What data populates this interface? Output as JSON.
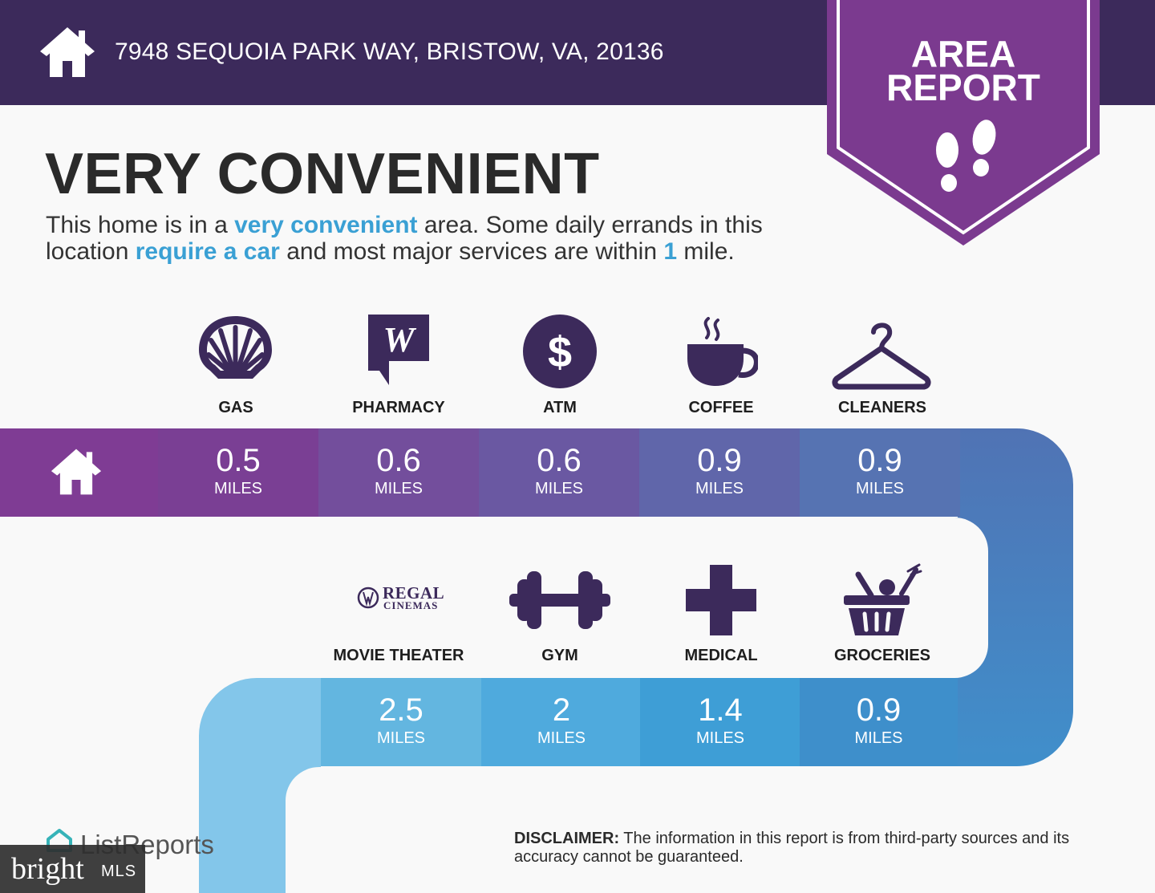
{
  "header": {
    "address": "7948 SEQUOIA PARK WAY, BRISTOW, VA, 20136",
    "icon": "home-icon",
    "color": "#3c2a5b"
  },
  "badge": {
    "line1": "AREA",
    "line2": "REPORT",
    "icon": "footprints-icon",
    "color": "#7b3a8f"
  },
  "headline": "VERY CONVENIENT",
  "summary": {
    "part1": "This home is in a ",
    "hl1": "very convenient",
    "part2": " area. Some daily errands in this location ",
    "hl2": "require a car",
    "part3": " and most major services are within ",
    "hl3": "1",
    "part4": " mile.",
    "highlight_color": "#3aa0d4"
  },
  "row1": [
    {
      "label": "GAS",
      "value": "0.5",
      "unit": "MILES",
      "icon": "shell-icon",
      "color": "#7a3f94"
    },
    {
      "label": "PHARMACY",
      "value": "0.6",
      "unit": "MILES",
      "icon": "walgreens-icon",
      "color": "#734e9c"
    },
    {
      "label": "ATM",
      "value": "0.6",
      "unit": "MILES",
      "icon": "dollar-icon",
      "color": "#6a58a2"
    },
    {
      "label": "COFFEE",
      "value": "0.9",
      "unit": "MILES",
      "icon": "coffee-cup-icon",
      "color": "#6066aa"
    },
    {
      "label": "CLEANERS",
      "value": "0.9",
      "unit": "MILES",
      "icon": "hanger-icon",
      "color": "#5673b2"
    }
  ],
  "row2": [
    {
      "label": "MOVIE THEATER",
      "value": "2.5",
      "unit": "MILES",
      "icon": "regal-cinemas-logo",
      "color": "#63b6e0"
    },
    {
      "label": "GYM",
      "value": "2",
      "unit": "MILES",
      "icon": "dumbbell-icon",
      "color": "#4faadd"
    },
    {
      "label": "MEDICAL",
      "value": "1.4",
      "unit": "MILES",
      "icon": "medical-cross-icon",
      "color": "#3e9ed6"
    },
    {
      "label": "GROCERIES",
      "value": "0.9",
      "unit": "MILES",
      "icon": "grocery-basket-icon",
      "color": "#3e8fcb"
    }
  ],
  "regal": {
    "line1": "REGAL",
    "line2": "CINEMAS"
  },
  "footer": {
    "brand": "ListReports",
    "mls_word": "bright",
    "mls_suffix": "MLS",
    "disclaimer_label": "DISCLAIMER:",
    "disclaimer_text": " The information in this report is from third-party sources and its accuracy cannot be guaranteed."
  }
}
